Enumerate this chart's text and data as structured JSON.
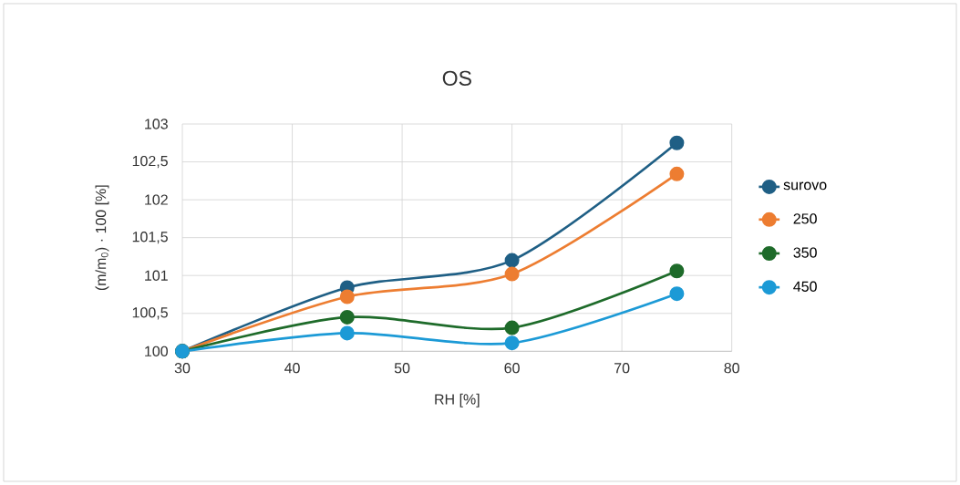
{
  "chart_data": {
    "type": "line",
    "title": "OS",
    "xlabel": "RH [%]",
    "ylabel": "(m/m$_{0}$) · 100 [%]",
    "x": [
      30,
      45,
      60,
      75
    ],
    "series": [
      {
        "name": "surovo",
        "color": "#1f5f85",
        "values": [
          100,
          100.84,
          101.2,
          102.75
        ]
      },
      {
        "name": "250",
        "color": "#ed7d31",
        "values": [
          100,
          100.72,
          101.02,
          102.34
        ]
      },
      {
        "name": "350",
        "color": "#1e6b2a",
        "values": [
          100,
          100.45,
          100.31,
          101.06
        ]
      },
      {
        "name": "450",
        "color": "#1c9ad6",
        "values": [
          100,
          100.24,
          100.11,
          100.76
        ]
      }
    ],
    "xlim": [
      30,
      80
    ],
    "xticks": [
      30,
      40,
      50,
      60,
      70,
      80
    ],
    "ylim": [
      100,
      103
    ],
    "yticks": [
      100,
      {
        "value": 100.5,
        "label": "100,5"
      },
      101,
      {
        "value": 101.5,
        "label": "101,5"
      },
      102,
      {
        "value": 102.5,
        "label": "102,5"
      },
      103
    ],
    "grid": true,
    "legend": "right",
    "marker": "circle",
    "line_style": "solid"
  }
}
